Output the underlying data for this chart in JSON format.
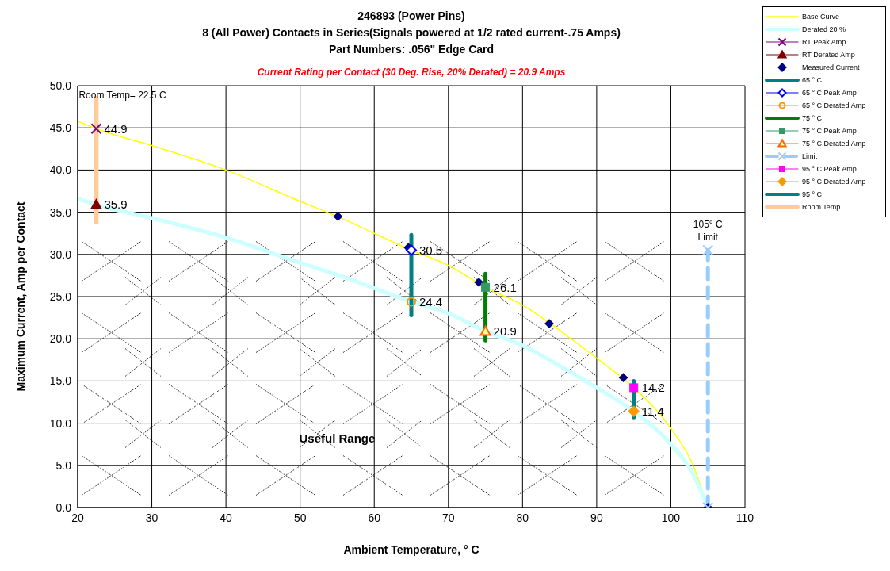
{
  "chart_data": {
    "type": "line",
    "title": "246893 (Power Pins)\n8 (All Power) Contacts in Series(Signals powered at 1/2 rated current-.75 Amps)\nPart Numbers: .056\" Edge Card",
    "subtitle": "Current Rating per Contact (30 Deg. Rise, 20% Derated)  = 20.9 Amps",
    "xlabel": "Ambient Temperature,  ° C",
    "ylabel": "Maximum Current, Amp per Contact",
    "xlim": [
      20,
      110
    ],
    "xticks": [
      20,
      30,
      40,
      50,
      60,
      70,
      80,
      90,
      100,
      110
    ],
    "ylim": [
      0,
      50
    ],
    "yticks": [
      {
        "value": 0,
        "label": "0.0"
      },
      {
        "value": 5,
        "label": "5.0"
      },
      {
        "value": 10,
        "label": "10.0"
      },
      {
        "value": 15,
        "label": "15.0"
      },
      {
        "value": 20,
        "label": "20.0"
      },
      {
        "value": 25,
        "label": "25.0"
      },
      {
        "value": 30,
        "label": "30.0"
      },
      {
        "value": 35,
        "label": "35.0"
      },
      {
        "value": 40,
        "label": "40.0"
      },
      {
        "value": 45,
        "label": "45.0"
      },
      {
        "value": 50,
        "label": "50.0"
      }
    ],
    "grid": true,
    "legend": "top right",
    "series": [
      {
        "name": "Base Curve",
        "color": "#ffff00",
        "marker": "none",
        "x": [
          20,
          22.5,
          30,
          40,
          50,
          55,
          65,
          70,
          75,
          80,
          85,
          90,
          95,
          100,
          103,
          105
        ],
        "values": [
          45.8,
          44.9,
          42.9,
          40.0,
          36.3,
          34.5,
          30.5,
          28.7,
          26.1,
          24.0,
          21.0,
          17.7,
          14.2,
          9.4,
          5.0,
          0
        ]
      },
      {
        "name": "Derated 20 %",
        "color": "#ccffff",
        "marker": "none",
        "x": [
          20,
          22.5,
          30,
          40,
          50,
          55,
          65,
          70,
          75,
          80,
          85,
          90,
          95,
          100,
          103,
          105
        ],
        "values": [
          36.6,
          35.9,
          34.3,
          32.0,
          29.0,
          27.6,
          24.4,
          23.0,
          20.9,
          19.2,
          16.8,
          14.2,
          11.4,
          7.5,
          4.0,
          0
        ]
      },
      {
        "name": "RT Peak Amp",
        "color": "#800080",
        "marker": "cross",
        "x": [
          22.5
        ],
        "values": [
          44.9
        ],
        "value_labels": [
          "44.9"
        ]
      },
      {
        "name": "RT Derated Amp",
        "color": "#800000",
        "marker": "triangle",
        "x": [
          22.5
        ],
        "values": [
          35.9
        ],
        "value_labels": [
          "35.9"
        ]
      },
      {
        "name": "Measured Current",
        "type": "scatter",
        "color": "#000080",
        "marker": "diamond",
        "x": [
          55.1,
          64.6,
          74.1,
          83.6,
          93.6,
          105
        ],
        "values": [
          34.5,
          30.8,
          26.7,
          21.8,
          15.4,
          0
        ]
      },
      {
        "name": "65 ° C",
        "color": "#008080",
        "marker": "none",
        "x": [
          65,
          65
        ],
        "values": [
          22.8,
          32.3
        ]
      },
      {
        "name": "65 ° C Peak Amp",
        "color": "#0000ff",
        "marker": "diamond",
        "x": [
          65
        ],
        "values": [
          30.5
        ],
        "value_labels": [
          "30.5"
        ]
      },
      {
        "name": "65 ° C Derated Amp",
        "color": "#ff9900",
        "marker": "circle",
        "x": [
          65
        ],
        "values": [
          24.4
        ],
        "value_labels": [
          "24.4"
        ]
      },
      {
        "name": "75 ° C",
        "color": "#008000",
        "marker": "none",
        "x": [
          75,
          75
        ],
        "values": [
          19.8,
          27.7
        ]
      },
      {
        "name": "75 ° C Peak Amp",
        "color": "#339966",
        "marker": "square",
        "x": [
          75
        ],
        "values": [
          26.1
        ],
        "value_labels": [
          "26.1"
        ]
      },
      {
        "name": "75 ° C Derated Amp",
        "color": "#ff6600",
        "marker": "triangle",
        "x": [
          75
        ],
        "values": [
          20.9
        ],
        "value_labels": [
          "20.9"
        ]
      },
      {
        "name": "Limit",
        "color": "#99ccff",
        "marker": "cross",
        "line_style": "dashed",
        "x": [
          105,
          105
        ],
        "values": [
          0,
          30.5
        ]
      },
      {
        "name": "95 ° C Peak Amp",
        "color": "#ff00ff",
        "marker": "square",
        "x": [
          95
        ],
        "values": [
          14.2
        ],
        "value_labels": [
          "14.2"
        ]
      },
      {
        "name": "95 ° C Derated Amp",
        "color": "#ff9900",
        "marker": "diamond",
        "x": [
          95
        ],
        "values": [
          11.4
        ],
        "value_labels": [
          "11.4"
        ]
      },
      {
        "name": "95 ° C",
        "color": "#008080",
        "marker": "none",
        "x": [
          95,
          95
        ],
        "values": [
          10.7,
          15.0
        ]
      },
      {
        "name": "Room Temp",
        "color": "#ffcc99",
        "marker": "none",
        "x": [
          22.5,
          22.5
        ],
        "values": [
          33.8,
          48.5
        ]
      }
    ],
    "annotations": [
      {
        "text": "Room Temp= 22.5 C",
        "x": 22.5,
        "y": 48.5
      },
      {
        "text": "105° C\nLimit",
        "x": 105,
        "y": 30.5
      },
      "Useful Range"
    ]
  }
}
